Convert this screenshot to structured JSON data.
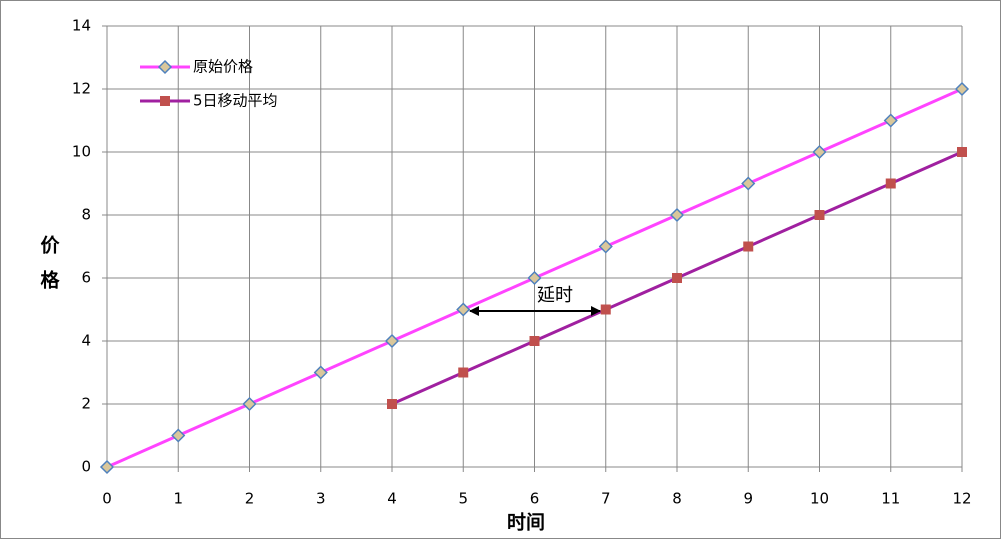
{
  "chart_data": {
    "type": "line",
    "x": [
      0,
      1,
      2,
      3,
      4,
      5,
      6,
      7,
      8,
      9,
      10,
      11,
      12
    ],
    "series": [
      {
        "name": "原始价格",
        "color": "#ff44ff",
        "values": [
          0,
          1,
          2,
          3,
          4,
          5,
          6,
          7,
          8,
          9,
          10,
          11,
          12
        ]
      },
      {
        "name": "5日移动平均",
        "color": "#a020a0",
        "values": [
          null,
          null,
          null,
          null,
          2,
          3,
          4,
          5,
          6,
          7,
          8,
          9,
          10
        ]
      }
    ],
    "xlim": [
      0,
      12
    ],
    "xticks": [
      0,
      1,
      2,
      3,
      4,
      5,
      6,
      7,
      8,
      9,
      10,
      11,
      12
    ],
    "ylim": [
      0,
      14
    ],
    "yticks": [
      0,
      2,
      4,
      6,
      8,
      10,
      12,
      14
    ],
    "xlabel": "时间",
    "ylabel": [
      "价",
      "格"
    ],
    "annotation": "延时",
    "grid": true
  }
}
